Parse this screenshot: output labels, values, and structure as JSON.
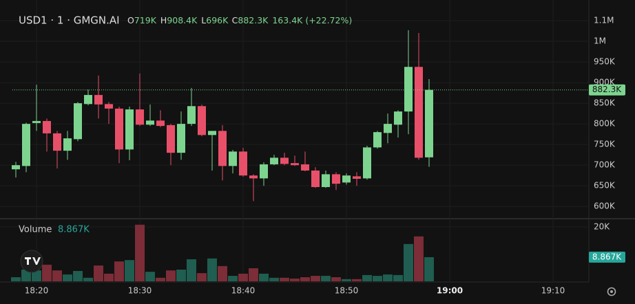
{
  "chart_data": {
    "type": "candlestick",
    "title": "USD1 · 1 · GMGN.AI",
    "legend": [
      {
        "key": "O",
        "value": "719K"
      },
      {
        "key": "H",
        "value": "908.4K"
      },
      {
        "key": "L",
        "value": "696K"
      },
      {
        "key": "C",
        "value": "882.3K"
      }
    ],
    "change": "163.4K (+22.72%)",
    "up_color": "#7dd48f",
    "down_color": "#e8506a",
    "open": [
      690000,
      698000,
      802000,
      807000,
      777000,
      735000,
      763000,
      848000,
      870000,
      848000,
      837000,
      738000,
      835000,
      798000,
      808000,
      797000,
      730000,
      800000,
      843000,
      773000,
      783000,
      698000,
      733000,
      675000,
      668000,
      702000,
      718000,
      705000,
      702000,
      687000,
      647000,
      678000,
      658000,
      673000,
      668000,
      743000,
      778000,
      798000,
      830000,
      938000,
      719000
    ],
    "high": [
      708000,
      803000,
      895000,
      813000,
      783000,
      783000,
      853000,
      883000,
      917000,
      853000,
      842000,
      842000,
      922000,
      847000,
      833000,
      800000,
      830000,
      887000,
      847000,
      782000,
      797000,
      737000,
      742000,
      678000,
      707000,
      725000,
      730000,
      723000,
      733000,
      695000,
      687000,
      683000,
      680000,
      683000,
      747000,
      783000,
      825000,
      833000,
      1027000,
      1020000,
      908400
    ],
    "low": [
      670000,
      683000,
      783000,
      733000,
      692000,
      713000,
      758000,
      845000,
      813000,
      800000,
      705000,
      712000,
      795000,
      795000,
      792000,
      700000,
      713000,
      795000,
      770000,
      687000,
      663000,
      680000,
      672000,
      613000,
      650000,
      700000,
      700000,
      698000,
      685000,
      645000,
      645000,
      640000,
      653000,
      650000,
      665000,
      740000,
      753000,
      767000,
      775000,
      713000,
      696000
    ],
    "close": [
      700000,
      800000,
      807000,
      777000,
      735000,
      765000,
      850000,
      870000,
      847000,
      837000,
      738000,
      835000,
      798000,
      808000,
      795000,
      730000,
      800000,
      843000,
      773000,
      783000,
      698000,
      733000,
      675000,
      668000,
      702000,
      718000,
      703000,
      700000,
      687000,
      647000,
      678000,
      655000,
      675000,
      667000,
      743000,
      780000,
      800000,
      830000,
      938000,
      718000,
      882300
    ],
    "last_label": "882.3K",
    "xlim": [
      -1.533,
      55.467
    ],
    "xticks": [
      {
        "value": 2,
        "label": "18:20"
      },
      {
        "value": 12,
        "label": "18:30"
      },
      {
        "value": 22,
        "label": "18:40"
      },
      {
        "value": 32,
        "label": "18:50"
      },
      {
        "value": 42,
        "label": "19:00"
      },
      {
        "value": 52,
        "label": "19:10"
      }
    ],
    "ylim": [
      572000,
      1075000
    ],
    "yticks": [
      {
        "value": 600000,
        "label": "600K"
      },
      {
        "value": 650000,
        "label": "650K"
      },
      {
        "value": 700000,
        "label": "700K"
      },
      {
        "value": 750000,
        "label": "750K"
      },
      {
        "value": 800000,
        "label": "800K"
      },
      {
        "value": 850000,
        "label": "850K"
      },
      {
        "value": 900000,
        "label": "900K"
      },
      {
        "value": 950000,
        "label": "950K"
      },
      {
        "value": 1000000,
        "label": "1M"
      },
      {
        "value": 1050000,
        "label": "1.1M"
      }
    ],
    "grid": true,
    "volume": {
      "name": "Volume",
      "values": [
        1500,
        4300,
        4000,
        6100,
        4000,
        2500,
        3800,
        1300,
        5800,
        2800,
        7300,
        7800,
        20800,
        3500,
        1300,
        4000,
        4300,
        8100,
        3000,
        8400,
        5600,
        2000,
        2800,
        4800,
        2800,
        1300,
        1300,
        1000,
        1500,
        2000,
        2000,
        1500,
        800,
        800,
        2300,
        2000,
        2500,
        2300,
        13700,
        16500,
        8867
      ],
      "last_label": "8.867K",
      "up_color": "#1f5e50",
      "down_color": "#7c2d37",
      "label_color": "#26a69a",
      "ylim": [
        0,
        22500
      ],
      "yticks": [
        {
          "value": 20000,
          "label": "20K"
        }
      ]
    }
  }
}
